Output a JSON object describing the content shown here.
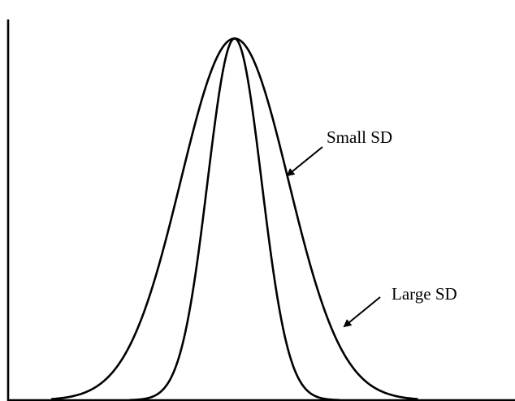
{
  "chart_data": {
    "type": "line",
    "title": "",
    "xlabel": "",
    "ylabel": "",
    "grid": false,
    "xlim": [
      -4.2,
      5.2
    ],
    "ylim": [
      0,
      0.42
    ],
    "series": [
      {
        "mean": 0,
        "sd": 1.0,
        "peak": 0.399,
        "color": "#000000"
      },
      {
        "mean": 0,
        "sd": 0.5,
        "peak": 0.798,
        "color": "#000000"
      }
    ],
    "annotations": [
      {
        "text": "Small SD",
        "target_series": 1
      },
      {
        "text": "Large SD",
        "target_series": 0
      }
    ]
  }
}
